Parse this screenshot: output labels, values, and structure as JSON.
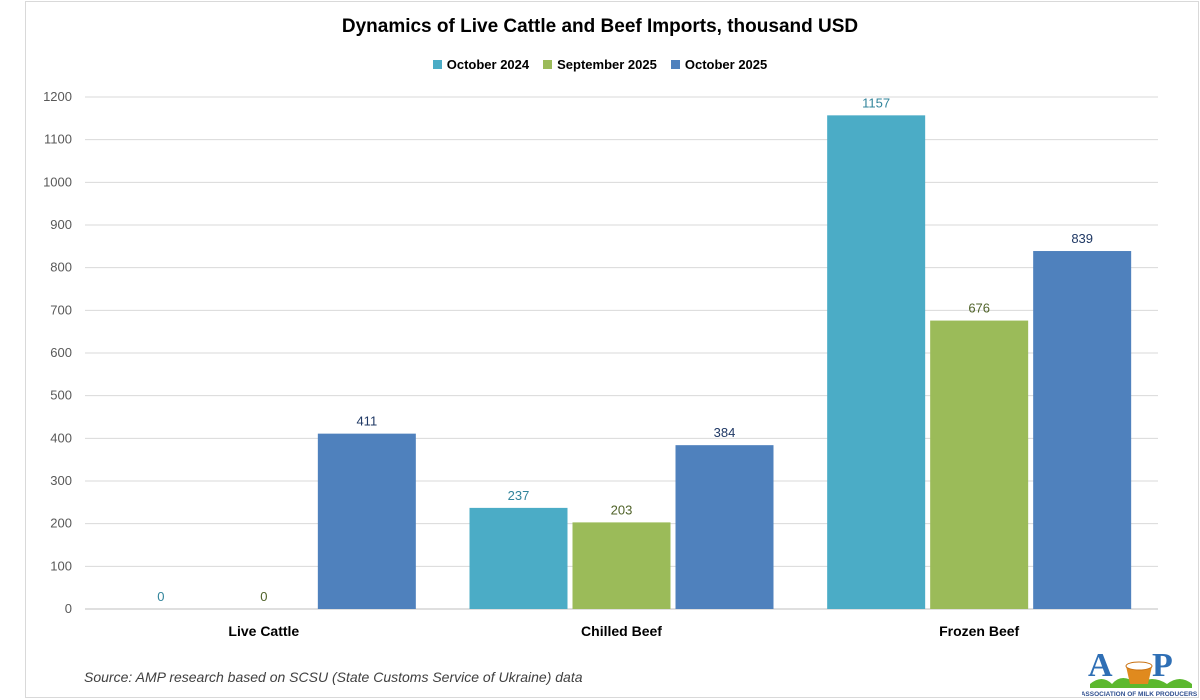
{
  "chart_data": {
    "type": "bar",
    "title": "Dynamics of Live Cattle and Beef Imports, thousand USD",
    "categories": [
      "Live Cattle",
      "Chilled Beef",
      "Frozen Beef"
    ],
    "series": [
      {
        "name": "October 2024",
        "color": "#4BACC6",
        "label_color": "#31849B",
        "values": [
          0,
          237,
          1157
        ]
      },
      {
        "name": "September 2025",
        "color": "#9BBB59",
        "label_color": "#4F6228",
        "values": [
          0,
          203,
          676
        ]
      },
      {
        "name": "October 2025",
        "color": "#4F81BD",
        "label_color": "#1F3864",
        "values": [
          411,
          384,
          839
        ]
      }
    ],
    "ylim": [
      0,
      1200
    ],
    "yticks": [
      0,
      100,
      200,
      300,
      400,
      500,
      600,
      700,
      800,
      900,
      1000,
      1100,
      1200
    ],
    "grid": true,
    "legend_position": "top",
    "xlabel": "",
    "ylabel": ""
  },
  "source": "Source: AMP research based on SCSU (State Customs Service of Ukraine) data",
  "logo": {
    "text": "AMP",
    "subtitle": "Association of milk producers"
  }
}
